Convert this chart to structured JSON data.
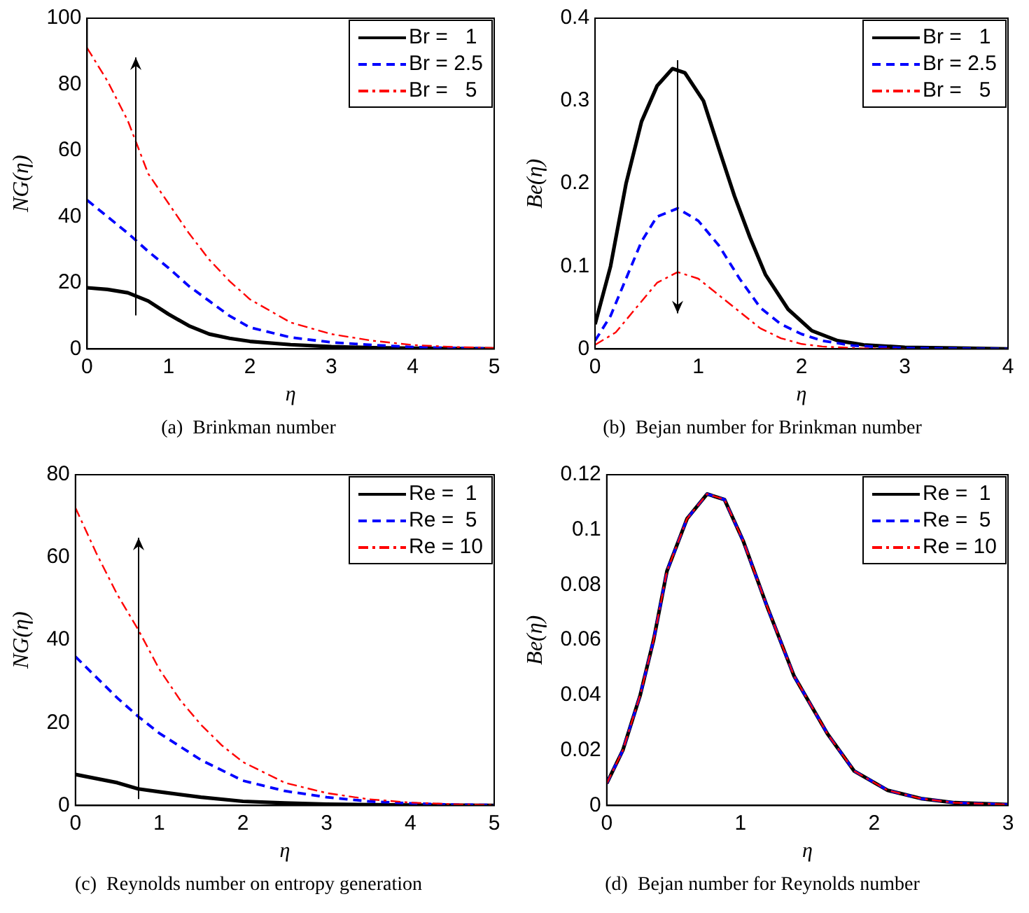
{
  "chart_data": [
    {
      "type": "line",
      "title": "(a)  Brinkman number",
      "xlabel": "η",
      "ylabel": "NG(η)",
      "xlim": [
        0,
        5
      ],
      "xticks": [
        0,
        1,
        2,
        3,
        4,
        5
      ],
      "ylim": [
        0,
        100
      ],
      "yticks": [
        0,
        20,
        40,
        60,
        80,
        100
      ],
      "legend": "top right",
      "marker": "none",
      "series": [
        {
          "name": "Br =   1",
          "color": "#000000",
          "line_style": "solid",
          "x": [
            0,
            0.25,
            0.5,
            0.75,
            1,
            1.25,
            1.5,
            1.75,
            2,
            2.5,
            3,
            3.5,
            4,
            4.5,
            5
          ],
          "values": [
            18.5,
            18,
            17,
            14.5,
            10.5,
            7,
            4.5,
            3.2,
            2.3,
            1.3,
            0.7,
            0.4,
            0.2,
            0.1,
            0
          ]
        },
        {
          "name": "Br = 2.5",
          "color": "#0000ff",
          "line_style": "dashed",
          "x": [
            0,
            0.25,
            0.5,
            0.75,
            1,
            1.25,
            1.5,
            1.75,
            2,
            2.5,
            3,
            3.5,
            4,
            4.5,
            5
          ],
          "values": [
            45,
            40,
            35,
            29.5,
            24.5,
            19,
            14.5,
            10,
            6.5,
            3.5,
            2,
            1.2,
            0.6,
            0.3,
            0.1
          ]
        },
        {
          "name": "Br =   5",
          "color": "#ff0000",
          "line_style": "dashdot",
          "x": [
            0,
            0.25,
            0.5,
            0.75,
            1,
            1.25,
            1.5,
            1.75,
            2,
            2.5,
            3,
            3.5,
            4,
            4.5,
            5
          ],
          "values": [
            91,
            81,
            69,
            53,
            44,
            35,
            27,
            20.5,
            15,
            8,
            4.5,
            2.5,
            1.2,
            0.6,
            0.3
          ]
        }
      ]
    },
    {
      "type": "line",
      "title": "(b)  Bejan number for Brinkman number",
      "xlabel": "η",
      "ylabel": "Be(η)",
      "xlim": [
        0,
        4
      ],
      "xticks": [
        0,
        1,
        2,
        3,
        4
      ],
      "ylim": [
        0,
        0.4
      ],
      "yticks": [
        0,
        0.1,
        0.2,
        0.3,
        0.4
      ],
      "legend": "top right",
      "marker": "none",
      "series": [
        {
          "name": "Br =   1",
          "color": "#000000",
          "line_style": "solid",
          "x": [
            0,
            0.15,
            0.3,
            0.45,
            0.6,
            0.75,
            0.87,
            1.05,
            1.2,
            1.35,
            1.5,
            1.65,
            1.87,
            2.1,
            2.35,
            2.6,
            3,
            3.5,
            4
          ],
          "values": [
            0.03,
            0.1,
            0.2,
            0.275,
            0.318,
            0.339,
            0.334,
            0.3,
            0.242,
            0.185,
            0.135,
            0.09,
            0.048,
            0.022,
            0.01,
            0.005,
            0.002,
            0.001,
            0
          ]
        },
        {
          "name": "Br = 2.5",
          "color": "#0000ff",
          "line_style": "dashed",
          "x": [
            0,
            0.15,
            0.3,
            0.45,
            0.6,
            0.8,
            1,
            1.2,
            1.4,
            1.6,
            1.8,
            2,
            2.2,
            2.5,
            3,
            4
          ],
          "values": [
            0.01,
            0.04,
            0.085,
            0.13,
            0.16,
            0.17,
            0.155,
            0.125,
            0.085,
            0.05,
            0.03,
            0.018,
            0.01,
            0.004,
            0.001,
            0
          ]
        },
        {
          "name": "Br =   5",
          "color": "#ff0000",
          "line_style": "dashdot",
          "x": [
            0,
            0.2,
            0.4,
            0.6,
            0.8,
            1,
            1.2,
            1.4,
            1.6,
            1.8,
            2,
            2.2,
            2.5,
            3
          ],
          "values": [
            0.005,
            0.02,
            0.05,
            0.08,
            0.093,
            0.085,
            0.065,
            0.045,
            0.025,
            0.013,
            0.006,
            0.003,
            0.001,
            0
          ]
        }
      ]
    },
    {
      "type": "line",
      "title": "(c)  Reynolds number on entropy generation",
      "xlabel": "η",
      "ylabel": "NG(η)",
      "xlim": [
        0,
        5
      ],
      "xticks": [
        0,
        1,
        2,
        3,
        4,
        5
      ],
      "ylim": [
        0,
        80
      ],
      "yticks": [
        0,
        20,
        40,
        60,
        80
      ],
      "legend": "top right",
      "marker": "none",
      "series": [
        {
          "name": "Re =  1",
          "color": "#000000",
          "line_style": "solid",
          "x": [
            0,
            0.5,
            0.75,
            1,
            1.5,
            2,
            2.5,
            3,
            4,
            5
          ],
          "values": [
            7.5,
            5.5,
            4,
            3.3,
            2,
            1,
            0.6,
            0.3,
            0.1,
            0
          ]
        },
        {
          "name": "Re =  5",
          "color": "#0000ff",
          "line_style": "dashed",
          "x": [
            0,
            0.25,
            0.5,
            0.75,
            1,
            1.5,
            2,
            2.5,
            3,
            3.5,
            4,
            4.5,
            5
          ],
          "values": [
            36,
            31,
            26,
            21.5,
            17.5,
            11,
            6,
            3.5,
            2,
            1,
            0.5,
            0.2,
            0.1
          ]
        },
        {
          "name": "Re = 10",
          "color": "#ff0000",
          "line_style": "dashdot",
          "x": [
            0,
            0.25,
            0.5,
            0.75,
            1,
            1.25,
            1.5,
            1.75,
            2,
            2.5,
            3,
            3.5,
            4,
            4.5,
            5
          ],
          "values": [
            72,
            61,
            51,
            42.5,
            33,
            25.5,
            19.5,
            14.5,
            10.5,
            5.5,
            3,
            1.5,
            0.7,
            0.3,
            0.1
          ]
        }
      ]
    },
    {
      "type": "line",
      "title": "(d)  Bejan number for Reynolds number",
      "xlabel": "η",
      "ylabel": "Be(η)",
      "xlim": [
        0,
        3
      ],
      "xticks": [
        0,
        1,
        2,
        3
      ],
      "ylim": [
        0,
        0.12
      ],
      "yticks": [
        0,
        0.02,
        0.04,
        0.06,
        0.08,
        0.1,
        0.12
      ],
      "legend": "top right",
      "marker": "none",
      "series": [
        {
          "name": "Re =  1",
          "color": "#000000",
          "line_style": "solid",
          "x": [
            0,
            0.12,
            0.25,
            0.35,
            0.45,
            0.6,
            0.75,
            0.88,
            1.02,
            1.2,
            1.4,
            1.65,
            1.85,
            2.1,
            2.35,
            2.6,
            3
          ],
          "values": [
            0.008,
            0.02,
            0.04,
            0.06,
            0.085,
            0.104,
            0.113,
            0.111,
            0.096,
            0.072,
            0.047,
            0.026,
            0.0125,
            0.0055,
            0.0025,
            0.001,
            0.0003
          ]
        },
        {
          "name": "Re =  5",
          "color": "#0000ff",
          "line_style": "dashed",
          "x": [
            0,
            0.12,
            0.25,
            0.35,
            0.45,
            0.6,
            0.75,
            0.88,
            1.02,
            1.2,
            1.4,
            1.65,
            1.85,
            2.1,
            2.35,
            2.6,
            3
          ],
          "values": [
            0.008,
            0.02,
            0.04,
            0.06,
            0.085,
            0.104,
            0.113,
            0.111,
            0.096,
            0.072,
            0.047,
            0.026,
            0.0125,
            0.0055,
            0.0025,
            0.001,
            0.0003
          ]
        },
        {
          "name": "Re = 10",
          "color": "#ff0000",
          "line_style": "dashdot",
          "x": [
            0,
            0.12,
            0.25,
            0.35,
            0.45,
            0.6,
            0.75,
            0.88,
            1.02,
            1.2,
            1.4,
            1.65,
            1.85,
            2.1,
            2.35,
            2.6,
            3
          ],
          "values": [
            0.008,
            0.02,
            0.04,
            0.06,
            0.085,
            0.104,
            0.113,
            0.111,
            0.096,
            0.072,
            0.047,
            0.026,
            0.0125,
            0.0055,
            0.0025,
            0.001,
            0.0003
          ]
        }
      ]
    }
  ]
}
